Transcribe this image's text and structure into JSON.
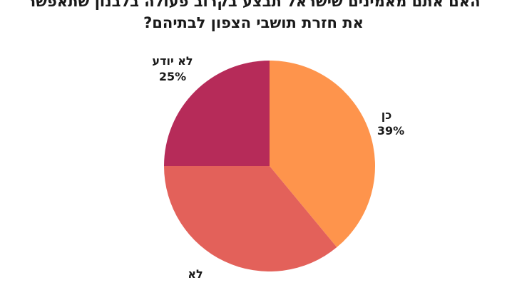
{
  "chart_data": {
    "type": "pie",
    "title_lines": [
      "האם אתם מאמינים שישראל תבצע בקרוב פעולה בלבנון שתאפשר",
      "את חזרת תושבי הצפון לבתיהם?"
    ],
    "slices": [
      {
        "label": "כן",
        "percent_label": "39%",
        "value": 39,
        "color": "#fe944c"
      },
      {
        "label": "לא",
        "percent_label": "",
        "value": 36,
        "color": "#e3615a"
      },
      {
        "label": "לא יודע",
        "percent_label": "25%",
        "value": 25,
        "color": "#b62b59"
      }
    ],
    "legend": "none",
    "grid": false
  }
}
